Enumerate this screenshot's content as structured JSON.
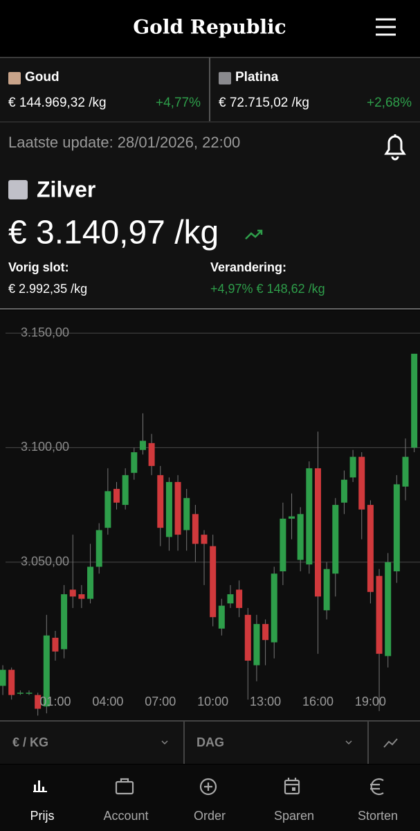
{
  "header": {
    "title": "Gold Republic"
  },
  "tickers": [
    {
      "name": "Goud",
      "price": "€ 144.969,32 /kg",
      "change": "+4,77%"
    },
    {
      "name": "Platina",
      "price": "€ 72.715,02 /kg",
      "change": "+2,68%"
    }
  ],
  "update": "Laatste update: 28/01/2026, 22:00",
  "instrument": {
    "name": "Zilver",
    "price": "€ 3.140,97 /kg",
    "previous_label": "Vorig slot:",
    "previous": "€ 2.992,35 /kg",
    "change_label": "Verandering:",
    "change": "+4,97% € 148,62 /kg"
  },
  "chart_data": {
    "type": "candlestick",
    "x": [
      -2,
      -1.5,
      -1,
      -0.5,
      0,
      0.5,
      1,
      1.5,
      2,
      2.5,
      3,
      3.5,
      4,
      4.5,
      5,
      5.5,
      6,
      6.5,
      7,
      7.5,
      8,
      8.5,
      9,
      9.5,
      10,
      10.5,
      11,
      11.5,
      12,
      12.5,
      13,
      13.5,
      14,
      14.5,
      15,
      15.5,
      16,
      16.5,
      17,
      17.5,
      18,
      18.5,
      19,
      19.5,
      20,
      20.5,
      21,
      21.5
    ],
    "open": [
      2996,
      3003,
      2993,
      2993,
      2992,
      2987,
      3017,
      3012,
      3038,
      3036,
      3034,
      3048,
      3065,
      3082,
      3075,
      3089,
      3099,
      3102,
      3088,
      3061,
      3085,
      3064,
      3071,
      3062,
      3057,
      3021,
      3032,
      3038,
      3027,
      3005,
      3023,
      3015,
      3046,
      3069,
      3051,
      3049,
      3091,
      3029,
      3045,
      3076,
      3087,
      3096,
      3075,
      3044,
      3009,
      3046,
      3083,
      3100
    ],
    "high": [
      3005,
      3004,
      2994,
      2994,
      2993,
      3027,
      3020,
      3040,
      3062,
      3040,
      3058,
      3067,
      3091,
      3085,
      3091,
      3100,
      3115,
      3106,
      3092,
      3087,
      3088,
      3082,
      3075,
      3064,
      3062,
      3034,
      3040,
      3042,
      3030,
      3027,
      3025,
      3048,
      3076,
      3080,
      3074,
      3094,
      3107,
      3050,
      3078,
      3090,
      3099,
      3098,
      3077,
      3047,
      3054,
      3088,
      3104,
      3141
    ],
    "low": [
      2992,
      2990,
      2992,
      2992,
      2983,
      2984,
      3007,
      3008,
      3030,
      3030,
      3032,
      3045,
      3062,
      3073,
      3073,
      3086,
      3097,
      3088,
      3057,
      3055,
      3055,
      3055,
      3050,
      3040,
      3022,
      3018,
      3030,
      3026,
      2990,
      2998,
      3005,
      3008,
      3040,
      3060,
      3046,
      3045,
      3010,
      3025,
      3035,
      3071,
      3085,
      3060,
      3032,
      2985,
      3004,
      3041,
      3077,
      3098
    ],
    "close": [
      3003,
      2992,
      2993,
      2993,
      2986,
      3018,
      3011,
      3036,
      3035,
      3034,
      3048,
      3064,
      3081,
      3076,
      3088,
      3098,
      3103,
      3092,
      3065,
      3085,
      3062,
      3078,
      3058,
      3058,
      3026,
      3031,
      3036,
      3030,
      3007,
      3023,
      3016,
      3045,
      3069,
      3070,
      3071,
      3091,
      3035,
      3047,
      3075,
      3086,
      3096,
      3073,
      3037,
      3010,
      3050,
      3084,
      3096,
      3141
    ],
    "up_color": "#2e9e4a",
    "down_color": "#d0393c",
    "xlim": [
      -2.16,
      21.83
    ],
    "ylim": [
      2981,
      3160
    ],
    "xticks": [
      {
        "value": 1,
        "label": "01:00"
      },
      {
        "value": 4,
        "label": "04:00"
      },
      {
        "value": 7,
        "label": "07:00"
      },
      {
        "value": 10,
        "label": "10:00"
      },
      {
        "value": 13,
        "label": "13:00"
      },
      {
        "value": 16,
        "label": "16:00"
      },
      {
        "value": 19,
        "label": "19:00"
      }
    ],
    "yticks": [
      {
        "value": 3050,
        "label": "3.050,00"
      },
      {
        "value": 3100,
        "label": "3.100,00"
      },
      {
        "value": 3150,
        "label": "3.150,00"
      }
    ],
    "grid": true
  },
  "selectors": [
    "€ / KG",
    "DAG"
  ],
  "nav": [
    "Prijs",
    "Account",
    "Order",
    "Sparen",
    "Storten"
  ]
}
